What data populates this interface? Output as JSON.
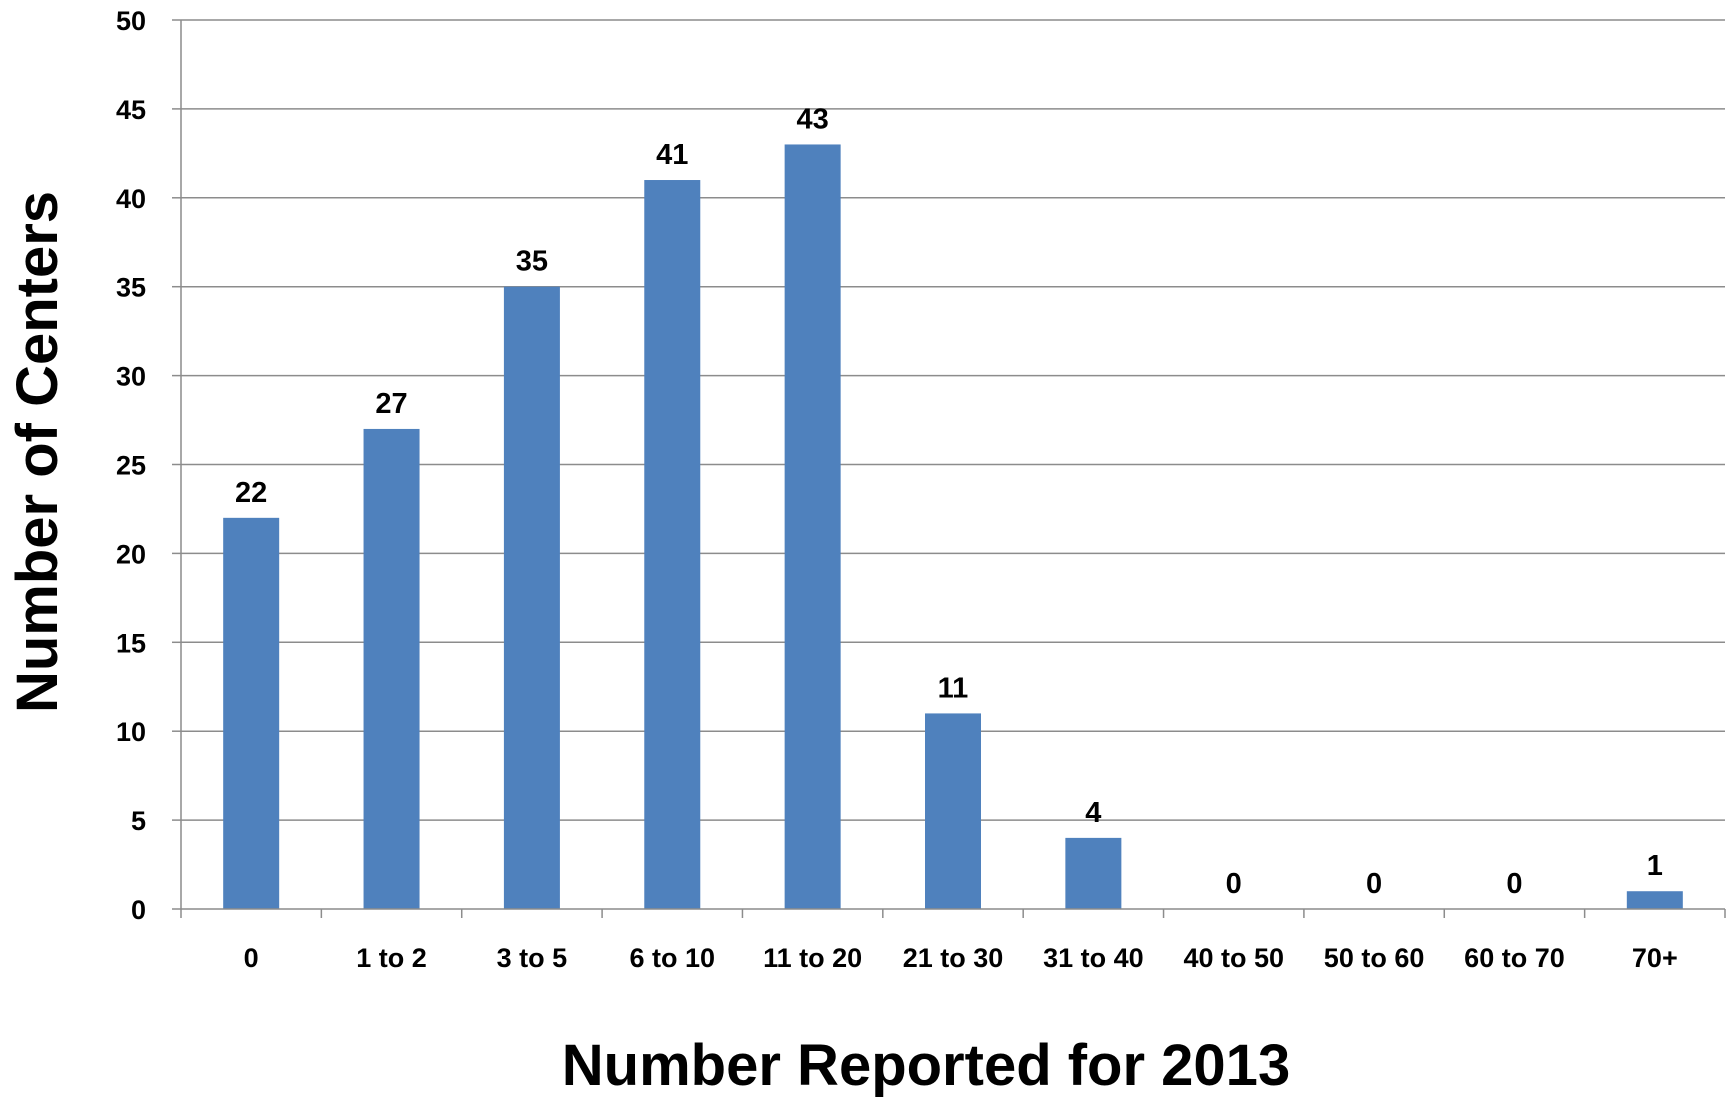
{
  "chart_data": {
    "type": "bar",
    "title": "",
    "xlabel": "Number Reported for 2013",
    "ylabel": "Number of Centers",
    "categories": [
      "0",
      "1 to 2",
      "3 to 5",
      "6 to 10",
      "11 to 20",
      "21 to 30",
      "31 to 40",
      "40 to 50",
      "50 to 60",
      "60 to 70",
      "70+"
    ],
    "values": [
      22,
      27,
      35,
      41,
      43,
      11,
      4,
      0,
      0,
      0,
      1
    ],
    "ylim": [
      0,
      50
    ],
    "yticks": [
      0,
      5,
      10,
      15,
      20,
      25,
      30,
      35,
      40,
      45,
      50
    ],
    "grid": true,
    "legend": "none",
    "data_labels": true,
    "colors": {
      "bar": "#4F81BD",
      "grid": "#8C8C8C",
      "axis": "#8C8C8C",
      "text": "#000000"
    }
  }
}
